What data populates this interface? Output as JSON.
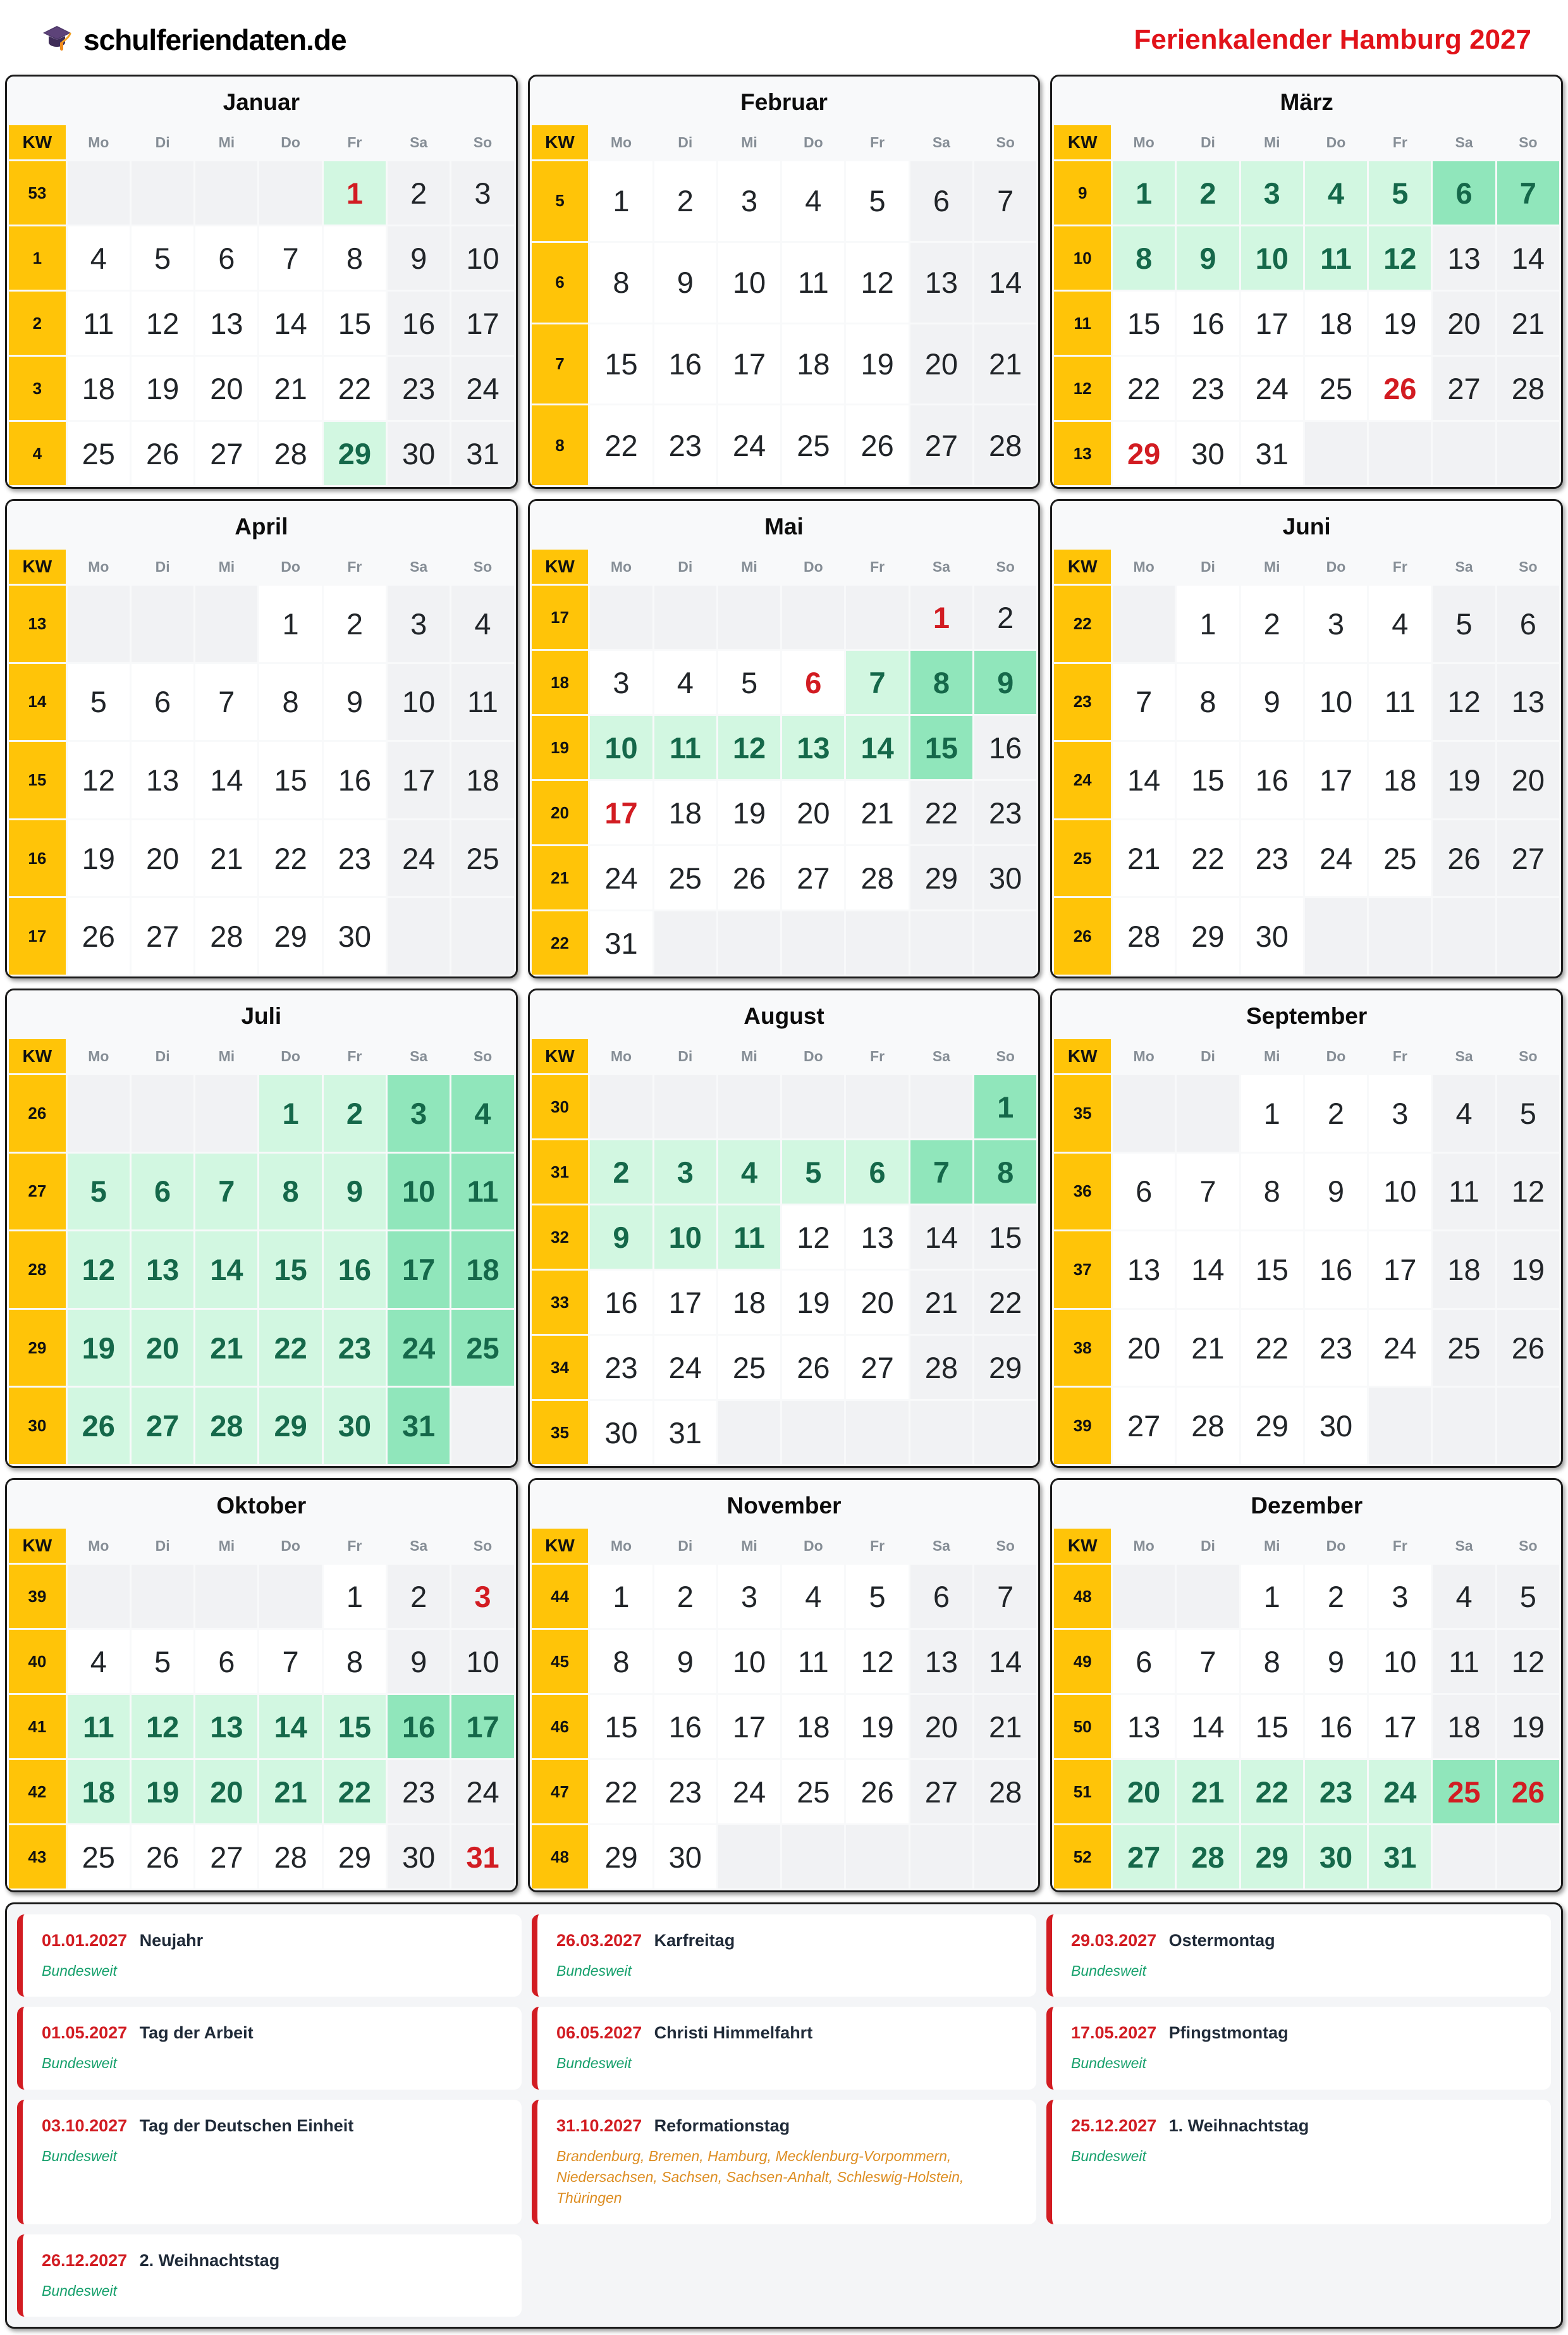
{
  "header": {
    "logo_icon": "graduation-cap",
    "logo_text": "schulferiendaten.de",
    "title": "Ferienkalender Hamburg 2027"
  },
  "kw_label": "KW",
  "weekday_headers": [
    "Mo",
    "Di",
    "Mi",
    "Do",
    "Fr",
    "Sa",
    "So"
  ],
  "colors": {
    "kw_yellow": "#ffc408",
    "holiday_light_green": "#d2f7e1",
    "holiday_weekend_green": "#90e6bb",
    "holiday_text_green": "#15684a",
    "public_holiday_red": "#d21c22",
    "title_red": "#e11219",
    "weekend_gray": "#f1f2f4",
    "nationwide_green": "#16a06c",
    "states_orange": "#dd8d21"
  },
  "months": [
    {
      "name": "Januar",
      "weeks": [
        {
          "kw": "53",
          "days": [
            "e",
            "e",
            "e",
            "e",
            "1 rh",
            "2 w",
            "3 w"
          ]
        },
        {
          "kw": "1",
          "days": [
            "4 n",
            "5 n",
            "6 n",
            "7 n",
            "8 n",
            "9 w",
            "10 w"
          ]
        },
        {
          "kw": "2",
          "days": [
            "11 n",
            "12 n",
            "13 n",
            "14 n",
            "15 n",
            "16 w",
            "17 w"
          ]
        },
        {
          "kw": "3",
          "days": [
            "18 n",
            "19 n",
            "20 n",
            "21 n",
            "22 n",
            "23 w",
            "24 w"
          ]
        },
        {
          "kw": "4",
          "days": [
            "25 n",
            "26 n",
            "27 n",
            "28 n",
            "29 h",
            "30 w",
            "31 w"
          ]
        }
      ]
    },
    {
      "name": "Februar",
      "weeks": [
        {
          "kw": "5",
          "days": [
            "1 n",
            "2 n",
            "3 n",
            "4 n",
            "5 n",
            "6 w",
            "7 w"
          ]
        },
        {
          "kw": "6",
          "days": [
            "8 n",
            "9 n",
            "10 n",
            "11 n",
            "12 n",
            "13 w",
            "14 w"
          ]
        },
        {
          "kw": "7",
          "days": [
            "15 n",
            "16 n",
            "17 n",
            "18 n",
            "19 n",
            "20 w",
            "21 w"
          ]
        },
        {
          "kw": "8",
          "days": [
            "22 n",
            "23 n",
            "24 n",
            "25 n",
            "26 n",
            "27 w",
            "28 w"
          ]
        }
      ]
    },
    {
      "name": "März",
      "weeks": [
        {
          "kw": "9",
          "days": [
            "1 h",
            "2 h",
            "3 h",
            "4 h",
            "5 h",
            "6 H",
            "7 H"
          ]
        },
        {
          "kw": "10",
          "days": [
            "8 h",
            "9 h",
            "10 h",
            "11 h",
            "12 h",
            "13 w",
            "14 w"
          ]
        },
        {
          "kw": "11",
          "days": [
            "15 n",
            "16 n",
            "17 n",
            "18 n",
            "19 n",
            "20 w",
            "21 w"
          ]
        },
        {
          "kw": "12",
          "days": [
            "22 n",
            "23 n",
            "24 n",
            "25 n",
            "26 rn",
            "27 w",
            "28 w"
          ]
        },
        {
          "kw": "13",
          "days": [
            "29 rn",
            "30 n",
            "31 n",
            "e",
            "e",
            "e",
            "e"
          ]
        }
      ]
    },
    {
      "name": "April",
      "weeks": [
        {
          "kw": "13",
          "days": [
            "e",
            "e",
            "e",
            "1 n",
            "2 n",
            "3 w",
            "4 w"
          ]
        },
        {
          "kw": "14",
          "days": [
            "5 n",
            "6 n",
            "7 n",
            "8 n",
            "9 n",
            "10 w",
            "11 w"
          ]
        },
        {
          "kw": "15",
          "days": [
            "12 n",
            "13 n",
            "14 n",
            "15 n",
            "16 n",
            "17 w",
            "18 w"
          ]
        },
        {
          "kw": "16",
          "days": [
            "19 n",
            "20 n",
            "21 n",
            "22 n",
            "23 n",
            "24 w",
            "25 w"
          ]
        },
        {
          "kw": "17",
          "days": [
            "26 n",
            "27 n",
            "28 n",
            "29 n",
            "30 n",
            "e",
            "e"
          ]
        }
      ]
    },
    {
      "name": "Mai",
      "weeks": [
        {
          "kw": "17",
          "days": [
            "e",
            "e",
            "e",
            "e",
            "e",
            "1 rw",
            "2 w"
          ]
        },
        {
          "kw": "18",
          "days": [
            "3 n",
            "4 n",
            "5 n",
            "6 rn",
            "7 h",
            "8 H",
            "9 H"
          ]
        },
        {
          "kw": "19",
          "days": [
            "10 h",
            "11 h",
            "12 h",
            "13 h",
            "14 h",
            "15 H",
            "16 w"
          ]
        },
        {
          "kw": "20",
          "days": [
            "17 rn",
            "18 n",
            "19 n",
            "20 n",
            "21 n",
            "22 w",
            "23 w"
          ]
        },
        {
          "kw": "21",
          "days": [
            "24 n",
            "25 n",
            "26 n",
            "27 n",
            "28 n",
            "29 w",
            "30 w"
          ]
        },
        {
          "kw": "22",
          "days": [
            "31 n",
            "e",
            "e",
            "e",
            "e",
            "e",
            "e"
          ]
        }
      ]
    },
    {
      "name": "Juni",
      "weeks": [
        {
          "kw": "22",
          "days": [
            "e",
            "1 n",
            "2 n",
            "3 n",
            "4 n",
            "5 w",
            "6 w"
          ]
        },
        {
          "kw": "23",
          "days": [
            "7 n",
            "8 n",
            "9 n",
            "10 n",
            "11 n",
            "12 w",
            "13 w"
          ]
        },
        {
          "kw": "24",
          "days": [
            "14 n",
            "15 n",
            "16 n",
            "17 n",
            "18 n",
            "19 w",
            "20 w"
          ]
        },
        {
          "kw": "25",
          "days": [
            "21 n",
            "22 n",
            "23 n",
            "24 n",
            "25 n",
            "26 w",
            "27 w"
          ]
        },
        {
          "kw": "26",
          "days": [
            "28 n",
            "29 n",
            "30 n",
            "e",
            "e",
            "e",
            "e"
          ]
        }
      ]
    },
    {
      "name": "Juli",
      "weeks": [
        {
          "kw": "26",
          "days": [
            "e",
            "e",
            "e",
            "1 h",
            "2 h",
            "3 H",
            "4 H"
          ]
        },
        {
          "kw": "27",
          "days": [
            "5 h",
            "6 h",
            "7 h",
            "8 h",
            "9 h",
            "10 H",
            "11 H"
          ]
        },
        {
          "kw": "28",
          "days": [
            "12 h",
            "13 h",
            "14 h",
            "15 h",
            "16 h",
            "17 H",
            "18 H"
          ]
        },
        {
          "kw": "29",
          "days": [
            "19 h",
            "20 h",
            "21 h",
            "22 h",
            "23 h",
            "24 H",
            "25 H"
          ]
        },
        {
          "kw": "30",
          "days": [
            "26 h",
            "27 h",
            "28 h",
            "29 h",
            "30 h",
            "31 H",
            "e"
          ]
        }
      ]
    },
    {
      "name": "August",
      "weeks": [
        {
          "kw": "30",
          "days": [
            "e",
            "e",
            "e",
            "e",
            "e",
            "e",
            "1 H"
          ]
        },
        {
          "kw": "31",
          "days": [
            "2 h",
            "3 h",
            "4 h",
            "5 h",
            "6 h",
            "7 H",
            "8 H"
          ]
        },
        {
          "kw": "32",
          "days": [
            "9 h",
            "10 h",
            "11 h",
            "12 n",
            "13 n",
            "14 w",
            "15 w"
          ]
        },
        {
          "kw": "33",
          "days": [
            "16 n",
            "17 n",
            "18 n",
            "19 n",
            "20 n",
            "21 w",
            "22 w"
          ]
        },
        {
          "kw": "34",
          "days": [
            "23 n",
            "24 n",
            "25 n",
            "26 n",
            "27 n",
            "28 w",
            "29 w"
          ]
        },
        {
          "kw": "35",
          "days": [
            "30 n",
            "31 n",
            "e",
            "e",
            "e",
            "e",
            "e"
          ]
        }
      ]
    },
    {
      "name": "September",
      "weeks": [
        {
          "kw": "35",
          "days": [
            "e",
            "e",
            "1 n",
            "2 n",
            "3 n",
            "4 w",
            "5 w"
          ]
        },
        {
          "kw": "36",
          "days": [
            "6 n",
            "7 n",
            "8 n",
            "9 n",
            "10 n",
            "11 w",
            "12 w"
          ]
        },
        {
          "kw": "37",
          "days": [
            "13 n",
            "14 n",
            "15 n",
            "16 n",
            "17 n",
            "18 w",
            "19 w"
          ]
        },
        {
          "kw": "38",
          "days": [
            "20 n",
            "21 n",
            "22 n",
            "23 n",
            "24 n",
            "25 w",
            "26 w"
          ]
        },
        {
          "kw": "39",
          "days": [
            "27 n",
            "28 n",
            "29 n",
            "30 n",
            "e",
            "e",
            "e"
          ]
        }
      ]
    },
    {
      "name": "Oktober",
      "weeks": [
        {
          "kw": "39",
          "days": [
            "e",
            "e",
            "e",
            "e",
            "1 n",
            "2 w",
            "3 rw"
          ]
        },
        {
          "kw": "40",
          "days": [
            "4 n",
            "5 n",
            "6 n",
            "7 n",
            "8 n",
            "9 w",
            "10 w"
          ]
        },
        {
          "kw": "41",
          "days": [
            "11 h",
            "12 h",
            "13 h",
            "14 h",
            "15 h",
            "16 H",
            "17 H"
          ]
        },
        {
          "kw": "42",
          "days": [
            "18 h",
            "19 h",
            "20 h",
            "21 h",
            "22 h",
            "23 w",
            "24 w"
          ]
        },
        {
          "kw": "43",
          "days": [
            "25 n",
            "26 n",
            "27 n",
            "28 n",
            "29 n",
            "30 w",
            "31 rw"
          ]
        }
      ]
    },
    {
      "name": "November",
      "weeks": [
        {
          "kw": "44",
          "days": [
            "1 n",
            "2 n",
            "3 n",
            "4 n",
            "5 n",
            "6 w",
            "7 w"
          ]
        },
        {
          "kw": "45",
          "days": [
            "8 n",
            "9 n",
            "10 n",
            "11 n",
            "12 n",
            "13 w",
            "14 w"
          ]
        },
        {
          "kw": "46",
          "days": [
            "15 n",
            "16 n",
            "17 n",
            "18 n",
            "19 n",
            "20 w",
            "21 w"
          ]
        },
        {
          "kw": "47",
          "days": [
            "22 n",
            "23 n",
            "24 n",
            "25 n",
            "26 n",
            "27 w",
            "28 w"
          ]
        },
        {
          "kw": "48",
          "days": [
            "29 n",
            "30 n",
            "e",
            "e",
            "e",
            "e",
            "e"
          ]
        }
      ]
    },
    {
      "name": "Dezember",
      "weeks": [
        {
          "kw": "48",
          "days": [
            "e",
            "e",
            "1 n",
            "2 n",
            "3 n",
            "4 w",
            "5 w"
          ]
        },
        {
          "kw": "49",
          "days": [
            "6 n",
            "7 n",
            "8 n",
            "9 n",
            "10 n",
            "11 w",
            "12 w"
          ]
        },
        {
          "kw": "50",
          "days": [
            "13 n",
            "14 n",
            "15 n",
            "16 n",
            "17 n",
            "18 w",
            "19 w"
          ]
        },
        {
          "kw": "51",
          "days": [
            "20 h",
            "21 h",
            "22 h",
            "23 h",
            "24 h",
            "25 rH",
            "26 rH"
          ]
        },
        {
          "kw": "52",
          "days": [
            "27 h",
            "28 h",
            "29 h",
            "30 h",
            "31 h",
            "e",
            "e"
          ]
        }
      ]
    }
  ],
  "holidays": [
    {
      "date": "01.01.2027",
      "name": "Neujahr",
      "region": "Bundesweit",
      "region_type": "nationwide"
    },
    {
      "date": "26.03.2027",
      "name": "Karfreitag",
      "region": "Bundesweit",
      "region_type": "nationwide"
    },
    {
      "date": "29.03.2027",
      "name": "Ostermontag",
      "region": "Bundesweit",
      "region_type": "nationwide"
    },
    {
      "date": "01.05.2027",
      "name": "Tag der Arbeit",
      "region": "Bundesweit",
      "region_type": "nationwide"
    },
    {
      "date": "06.05.2027",
      "name": "Christi Himmelfahrt",
      "region": "Bundesweit",
      "region_type": "nationwide"
    },
    {
      "date": "17.05.2027",
      "name": "Pfingstmontag",
      "region": "Bundesweit",
      "region_type": "nationwide"
    },
    {
      "date": "03.10.2027",
      "name": "Tag der Deutschen Einheit",
      "region": "Bundesweit",
      "region_type": "nationwide"
    },
    {
      "date": "31.10.2027",
      "name": "Reformationstag",
      "region": "Brandenburg, Bremen, Hamburg, Mecklenburg-Vorpommern, Niedersachsen, Sachsen, Sachsen-Anhalt, Schleswig-Holstein, Thüringen",
      "region_type": "states"
    },
    {
      "date": "25.12.2027",
      "name": "1. Weihnachtstag",
      "region": "Bundesweit",
      "region_type": "nationwide"
    },
    {
      "date": "26.12.2027",
      "name": "2. Weihnachtstag",
      "region": "Bundesweit",
      "region_type": "nationwide"
    }
  ]
}
